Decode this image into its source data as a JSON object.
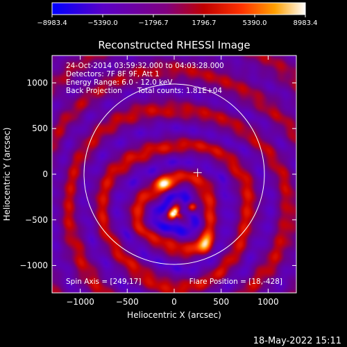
{
  "colorbar": {
    "ticks": [
      "-8983.4",
      "-5390.0",
      "-1796.7",
      "1796.7",
      "5390.0",
      "8983.4"
    ],
    "range": [
      -8983.4,
      8983.4
    ],
    "colors": [
      "#0000ff",
      "#5a00c8",
      "#800080",
      "#c00000",
      "#ff3300",
      "#ffa000",
      "#ffffff"
    ]
  },
  "chart_data": {
    "type": "heatmap",
    "title": "Reconstructed RHESSI Image",
    "xlabel": "Heliocentric X (arcsec)",
    "ylabel": "Heliocentric Y (arcsec)",
    "xlim": [
      -1300,
      1300
    ],
    "ylim": [
      -1300,
      1300
    ],
    "xticks": [
      {
        "value": -1000,
        "label": "−1000"
      },
      {
        "value": -500,
        "label": "−500"
      },
      {
        "value": 0,
        "label": "0"
      },
      {
        "value": 500,
        "label": "500"
      },
      {
        "value": 1000,
        "label": "1000"
      }
    ],
    "yticks": [
      {
        "value": 1000,
        "label": "1000"
      },
      {
        "value": 500,
        "label": "500"
      },
      {
        "value": 0,
        "label": "0"
      },
      {
        "value": -500,
        "label": "−500"
      },
      {
        "value": -1000,
        "label": "−1000"
      }
    ],
    "solar_limb_radius_arcsec": 960,
    "center_marker": [
      249,
      17
    ],
    "sources": [
      {
        "x": -25,
        "y": -410,
        "peak": 8983.4
      },
      {
        "x": 180,
        "y": -350,
        "peak": 8983.4
      },
      {
        "x": 330,
        "y": -760,
        "peak": 5390.0
      },
      {
        "x": -100,
        "y": -100,
        "peak": 5390.0
      }
    ],
    "annotations": {
      "time_range": "24-Oct-2014 03:59:32.000 to 04:03:28.000",
      "detectors": "Detectors: 7F 8F 9F, Att 1",
      "energy": "Energy Range: 6.0 - 12.0 keV",
      "method": "Back Projection",
      "counts": "Total counts: 1.81E+04",
      "spin_axis": "Spin Axis = [249,17]",
      "flare_position": "Flare Position = [18,-428]"
    }
  },
  "footer": {
    "timestamp": "18-May-2022 15:11"
  }
}
